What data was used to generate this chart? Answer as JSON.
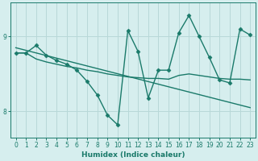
{
  "xlabel": "Humidex (Indice chaleur)",
  "bg_color": "#d6eeee",
  "line_color": "#1a7a6a",
  "grid_color": "#b8d8d8",
  "xlim": [
    -0.5,
    23.5
  ],
  "ylim": [
    7.65,
    9.45
  ],
  "yticks": [
    8,
    9
  ],
  "xticks": [
    0,
    1,
    2,
    3,
    4,
    5,
    6,
    7,
    8,
    9,
    10,
    11,
    12,
    13,
    14,
    15,
    16,
    17,
    18,
    19,
    20,
    21,
    22,
    23
  ],
  "series": [
    {
      "x": [
        0,
        23
      ],
      "y": [
        8.85,
        8.05
      ],
      "marker": null,
      "linewidth": 1.0
    },
    {
      "x": [
        0,
        1,
        2,
        3,
        4,
        5,
        6,
        7,
        8,
        9,
        10,
        11,
        12,
        13,
        14,
        15,
        16,
        17,
        18,
        19,
        20,
        21,
        22,
        23
      ],
      "y": [
        8.78,
        8.78,
        8.7,
        8.66,
        8.63,
        8.6,
        8.58,
        8.55,
        8.53,
        8.5,
        8.48,
        8.46,
        8.45,
        8.44,
        8.44,
        8.43,
        8.48,
        8.5,
        8.48,
        8.46,
        8.44,
        8.43,
        8.43,
        8.42
      ],
      "marker": null,
      "linewidth": 1.0
    },
    {
      "x": [
        0,
        1,
        2,
        3,
        4,
        5,
        6,
        7,
        8,
        9,
        10,
        11,
        12,
        13,
        14,
        15,
        16,
        17,
        18,
        19,
        20,
        21,
        22,
        23
      ],
      "y": [
        8.78,
        8.78,
        8.88,
        8.75,
        8.68,
        8.63,
        8.55,
        8.4,
        8.22,
        7.95,
        7.82,
        9.08,
        8.8,
        8.18,
        8.55,
        8.55,
        9.05,
        9.28,
        9.0,
        8.72,
        8.42,
        8.38,
        9.1,
        9.02
      ],
      "marker": "D",
      "markersize": 2.5,
      "linewidth": 1.0
    }
  ]
}
